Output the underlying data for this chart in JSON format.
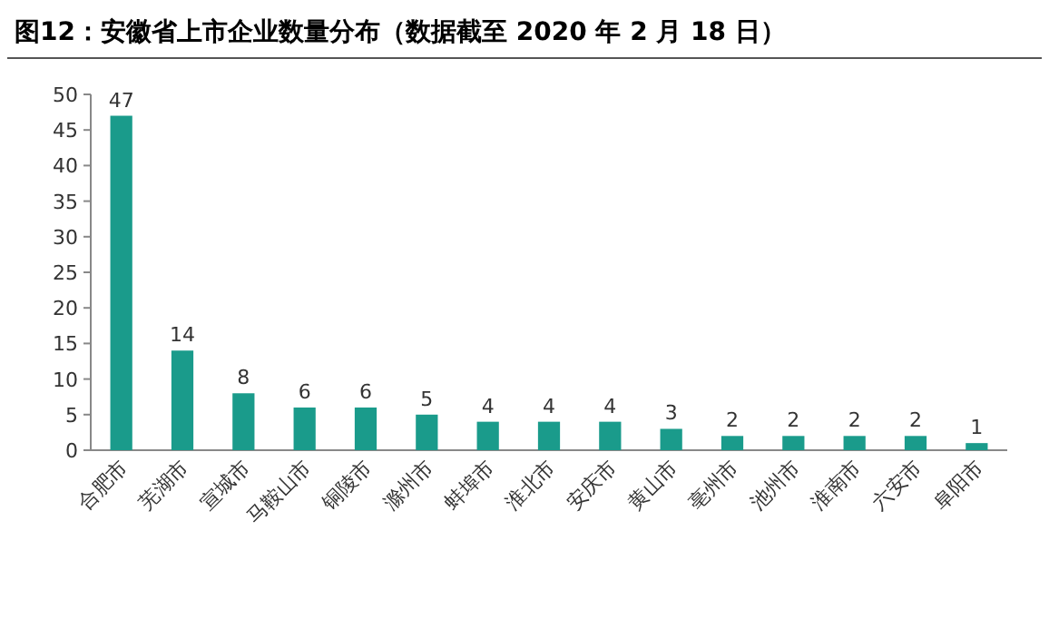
{
  "chart_data": {
    "type": "bar",
    "title": "图12：安徽省上市企业数量分布（数据截至 2020 年 2 月 18 日）",
    "categories": [
      "合肥市",
      "芜湖市",
      "宣城市",
      "马鞍山市",
      "铜陵市",
      "滁州市",
      "蚌埠市",
      "淮北市",
      "安庆市",
      "黄山市",
      "亳州市",
      "池州市",
      "淮南市",
      "六安市",
      "阜阳市"
    ],
    "values": [
      47,
      14,
      8,
      6,
      6,
      5,
      4,
      4,
      4,
      3,
      2,
      2,
      2,
      2,
      1
    ],
    "color": "#1a9b8b",
    "ylim": [
      0,
      50
    ],
    "yticks": [
      0,
      5,
      10,
      15,
      20,
      25,
      30,
      35,
      40,
      45,
      50
    ],
    "data_labels": true
  }
}
